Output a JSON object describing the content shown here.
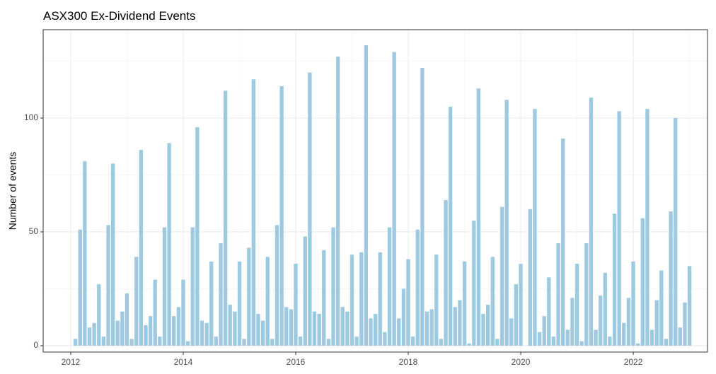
{
  "chart_data": {
    "type": "bar",
    "title": "ASX300 Ex-Dividend Events",
    "y_label": "Number of events",
    "color": "#9ecae1",
    "grid": true,
    "xlim": [
      2011.51,
      2023.32
    ],
    "xticks": [
      2012,
      2014,
      2016,
      2018,
      2020,
      2022
    ],
    "ylim": [
      -2.8,
      138.8
    ],
    "yticks": [
      0,
      50,
      100
    ],
    "x": [
      2012.083,
      2012.167,
      2012.25,
      2012.333,
      2012.417,
      2012.5,
      2012.583,
      2012.667,
      2012.75,
      2012.833,
      2012.917,
      2013,
      2013.083,
      2013.167,
      2013.25,
      2013.333,
      2013.417,
      2013.5,
      2013.583,
      2013.667,
      2013.75,
      2013.833,
      2013.917,
      2014,
      2014.083,
      2014.167,
      2014.25,
      2014.333,
      2014.417,
      2014.5,
      2014.583,
      2014.667,
      2014.75,
      2014.833,
      2014.917,
      2015,
      2015.083,
      2015.167,
      2015.25,
      2015.333,
      2015.417,
      2015.5,
      2015.583,
      2015.667,
      2015.75,
      2015.833,
      2015.917,
      2016,
      2016.083,
      2016.167,
      2016.25,
      2016.333,
      2016.417,
      2016.5,
      2016.583,
      2016.667,
      2016.75,
      2016.833,
      2016.917,
      2017,
      2017.083,
      2017.167,
      2017.25,
      2017.333,
      2017.417,
      2017.5,
      2017.583,
      2017.667,
      2017.75,
      2017.833,
      2017.917,
      2018,
      2018.083,
      2018.167,
      2018.25,
      2018.333,
      2018.417,
      2018.5,
      2018.583,
      2018.667,
      2018.75,
      2018.833,
      2018.917,
      2019,
      2019.083,
      2019.167,
      2019.25,
      2019.333,
      2019.417,
      2019.5,
      2019.583,
      2019.667,
      2019.75,
      2019.833,
      2019.917,
      2020,
      2020.083,
      2020.167,
      2020.25,
      2020.333,
      2020.417,
      2020.5,
      2020.583,
      2020.667,
      2020.75,
      2020.833,
      2020.917,
      2021,
      2021.083,
      2021.167,
      2021.25,
      2021.333,
      2021.417,
      2021.5,
      2021.583,
      2021.667,
      2021.75,
      2021.833,
      2021.917,
      2022,
      2022.083,
      2022.167,
      2022.25,
      2022.333,
      2022.417,
      2022.5,
      2022.583,
      2022.667,
      2022.75,
      2022.833,
      2022.917,
      2023
    ],
    "values": [
      3,
      51,
      81,
      8,
      10,
      27,
      4,
      53,
      80,
      11,
      15,
      23,
      3,
      39,
      86,
      9,
      13,
      29,
      4,
      52,
      89,
      13,
      17,
      29,
      2,
      52,
      96,
      11,
      10,
      37,
      4,
      45,
      112,
      18,
      15,
      37,
      3,
      43,
      117,
      14,
      11,
      39,
      3,
      53,
      114,
      17,
      16,
      36,
      4,
      48,
      120,
      15,
      14,
      42,
      3,
      52,
      127,
      17,
      15,
      40,
      4,
      41,
      132,
      12,
      14,
      41,
      6,
      52,
      129,
      12,
      25,
      38,
      4,
      51,
      122,
      15,
      16,
      40,
      3,
      64,
      105,
      17,
      20,
      37,
      1,
      55,
      113,
      14,
      18,
      39,
      3,
      61,
      108,
      12,
      27,
      36,
      0,
      60,
      104,
      6,
      13,
      30,
      4,
      45,
      91,
      7,
      21,
      36,
      2,
      45,
      109,
      7,
      22,
      32,
      4,
      58,
      103,
      10,
      21,
      37,
      1,
      56,
      104,
      7,
      20,
      33,
      3,
      59,
      100,
      8,
      19,
      35
    ]
  }
}
